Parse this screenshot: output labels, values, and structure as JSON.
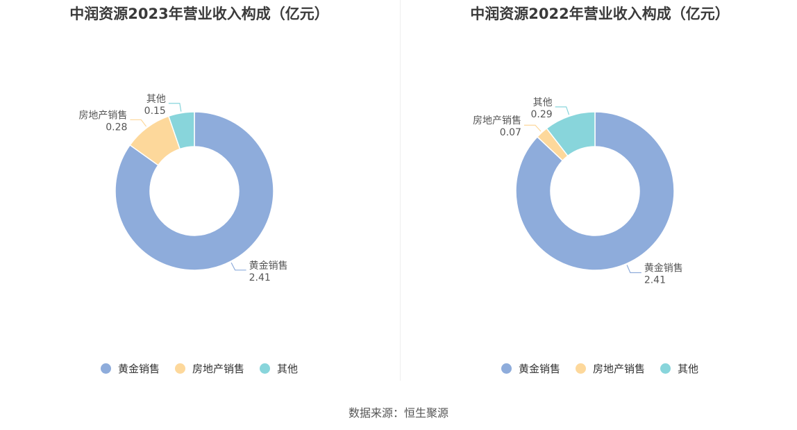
{
  "source": "数据来源：恒生聚源",
  "chart_data": [
    {
      "type": "pie",
      "title": "中润资源2023年营业收入构成（亿元）",
      "categories": [
        "黄金销售",
        "房地产销售",
        "其他"
      ],
      "values": [
        2.41,
        0.28,
        0.15
      ],
      "value_labels": [
        "2.41",
        "0.28",
        "0.15"
      ],
      "colors": [
        "#8eacdb",
        "#fdd89b",
        "#88d5db"
      ],
      "legend_position": "bottom"
    },
    {
      "type": "pie",
      "title": "中润资源2022年营业收入构成（亿元）",
      "categories": [
        "黄金销售",
        "房地产销售",
        "其他"
      ],
      "values": [
        2.41,
        0.07,
        0.29
      ],
      "value_labels": [
        "2.41",
        "0.07",
        "0.29"
      ],
      "colors": [
        "#8eacdb",
        "#fdd89b",
        "#88d5db"
      ],
      "legend_position": "bottom"
    }
  ]
}
